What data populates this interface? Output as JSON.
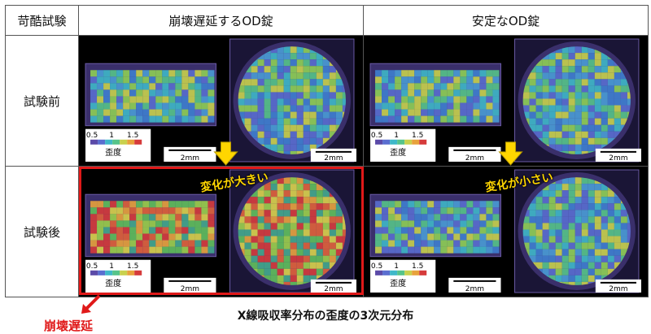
{
  "header": {
    "corner": "苛酷試験",
    "col1": "崩壊遅延するOD錠",
    "col2": "安定なOD錠"
  },
  "rows": {
    "before": "試験前",
    "after": "試験後"
  },
  "panels": {
    "scale_ticks": [
      "0.5",
      "1",
      "1.5"
    ],
    "scale_label": "歪度",
    "scale_bar_label": "2mm"
  },
  "annotations": {
    "large_change": "変化が大きい",
    "small_change": "変化が小さい",
    "failure_label": "崩壊遅延"
  },
  "footer": {
    "title": "X線吸収率分布の歪度の3次元分布"
  },
  "colors": {
    "highlight": "#e01919",
    "arrow": "#ffd600"
  }
}
